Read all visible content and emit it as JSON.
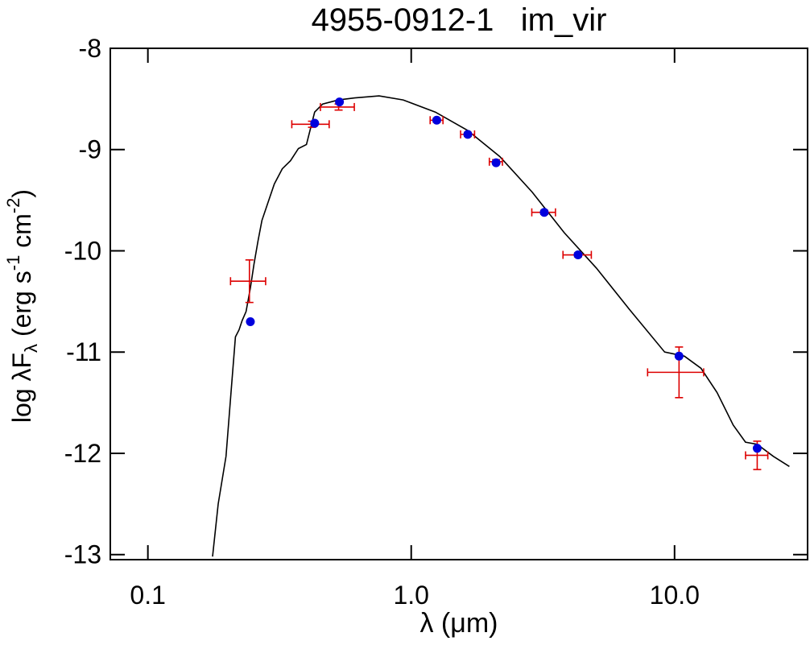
{
  "chart_data": {
    "type": "sed",
    "title": "4955-0912-1   im_vir",
    "x_label": "λ (μm)",
    "y_label": [
      "log λF",
      "λ",
      " (erg s",
      "-1",
      " cm",
      "-2",
      ")"
    ],
    "x_log": true,
    "xlim": [
      0.072,
      32
    ],
    "ylim": [
      -13.05,
      -8
    ],
    "xticks": [
      {
        "value": 0.1,
        "label": "0.1"
      },
      {
        "value": 1,
        "label": "1.0"
      },
      {
        "value": 10,
        "label": "10.0"
      }
    ],
    "yticks": [
      -8,
      -9,
      -10,
      -11,
      -12,
      -13
    ],
    "model": {
      "color": "#000000",
      "x": [
        0.176,
        0.185,
        0.198,
        0.208,
        0.215,
        0.222,
        0.228,
        0.236,
        0.245,
        0.253,
        0.262,
        0.271,
        0.281,
        0.302,
        0.324,
        0.348,
        0.373,
        0.4,
        0.43,
        0.461,
        0.53,
        0.611,
        0.755,
        0.932,
        1.235,
        1.637,
        2.17,
        2.88,
        3.81,
        5.05,
        6.7,
        9.17,
        10.9,
        12.6,
        14.5,
        16.7,
        18.6,
        20.6,
        23.7,
        27.3
      ],
      "y": [
        -13.02,
        -12.5,
        -12.03,
        -11.32,
        -10.85,
        -10.78,
        -10.69,
        -10.6,
        -10.37,
        -10.13,
        -9.9,
        -9.7,
        -9.58,
        -9.34,
        -9.19,
        -9.11,
        -8.99,
        -8.95,
        -8.63,
        -8.55,
        -8.51,
        -8.49,
        -8.47,
        -8.51,
        -8.63,
        -8.81,
        -9.07,
        -9.42,
        -9.82,
        -10.17,
        -10.57,
        -11.0,
        -11.04,
        -11.16,
        -11.4,
        -11.72,
        -11.89,
        -11.91,
        -12.03,
        -12.13
      ]
    },
    "model_photometry": {
      "color": "#0000dd",
      "x": [
        0.245,
        0.43,
        0.534,
        1.25,
        1.64,
        2.1,
        3.2,
        4.3,
        10.4,
        20.6
      ],
      "y": [
        -10.7,
        -8.74,
        -8.53,
        -8.71,
        -8.85,
        -9.13,
        -9.62,
        -10.04,
        -11.04,
        -11.95
      ]
    },
    "observed": {
      "color": "#dd0000",
      "x": [
        0.243,
        0.42,
        0.53,
        1.25,
        1.64,
        2.1,
        3.2,
        4.3,
        10.4,
        20.6
      ],
      "y": [
        -10.3,
        -8.75,
        -8.58,
        -8.71,
        -8.85,
        -9.12,
        -9.62,
        -10.04,
        -11.2,
        -12.02
      ],
      "xerr": [
        0.037,
        0.068,
        0.078,
        0.07,
        0.1,
        0.12,
        0.33,
        0.53,
        2.5,
        2.0
      ],
      "yerr": [
        0.21,
        0.03,
        0.03,
        0.02,
        0.02,
        0.02,
        0.02,
        0.02,
        0.25,
        0.14
      ]
    }
  }
}
